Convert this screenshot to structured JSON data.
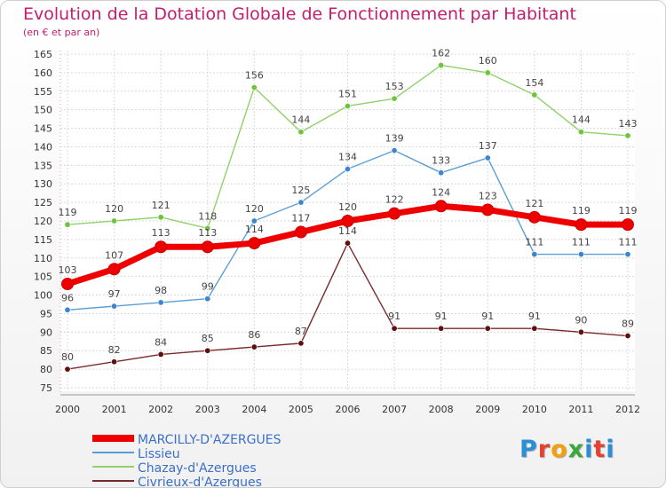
{
  "header": {
    "title": "Evolution de la Dotation Globale de Fonctionnement par Habitant",
    "subtitle": "(en € et par an)"
  },
  "logo": {
    "letters": [
      "P",
      "r",
      "o",
      "x",
      "i",
      "t",
      "i"
    ],
    "colors": [
      "#2a8fd6",
      "#e7402e",
      "#f2a10d",
      "#3aa83a",
      "#2a8fd6",
      "#e7402e",
      "#2a8fd6"
    ]
  },
  "chart_data": {
    "type": "line",
    "title": "Evolution de la Dotation Globale de Fonctionnement par Habitant",
    "subtitle": "(en € et par an)",
    "xlabel": "",
    "ylabel": "",
    "x": [
      2000,
      2001,
      2002,
      2003,
      2004,
      2005,
      2006,
      2007,
      2008,
      2009,
      2010,
      2011,
      2012
    ],
    "ylim": [
      75,
      165
    ],
    "yticks": [
      75,
      80,
      85,
      90,
      95,
      100,
      105,
      110,
      115,
      120,
      125,
      130,
      135,
      140,
      145,
      150,
      155,
      160,
      165
    ],
    "grid": true,
    "legend": "bottom-left",
    "series": [
      {
        "name": "Chazay-d'Azergues",
        "color": "#8fd16a",
        "marker": "#6ec43a",
        "emphasis": false,
        "values": [
          119,
          120,
          121,
          118,
          156,
          144,
          151,
          153,
          162,
          160,
          154,
          144,
          143
        ]
      },
      {
        "name": "Lissieu",
        "color": "#5b9ed6",
        "marker": "#3b86cf",
        "emphasis": false,
        "values": [
          96,
          97,
          98,
          99,
          120,
          125,
          134,
          139,
          133,
          137,
          111,
          111,
          111
        ]
      },
      {
        "name": "Civrieux-d'Azergues",
        "color": "#7a2a2a",
        "marker": "#5e1010",
        "emphasis": false,
        "values": [
          80,
          82,
          84,
          85,
          86,
          87,
          114,
          91,
          91,
          91,
          91,
          90,
          89
        ]
      },
      {
        "name": "MARCILLY-D'AZERGUES",
        "color": "#ee0000",
        "marker": "#ee0000",
        "emphasis": true,
        "values": [
          103,
          107,
          113,
          113,
          114,
          117,
          120,
          122,
          124,
          123,
          121,
          119,
          119
        ]
      }
    ],
    "legend_order": [
      "MARCILLY-D'AZERGUES",
      "Lissieu",
      "Chazay-d'Azergues",
      "Civrieux-d'Azergues"
    ]
  }
}
